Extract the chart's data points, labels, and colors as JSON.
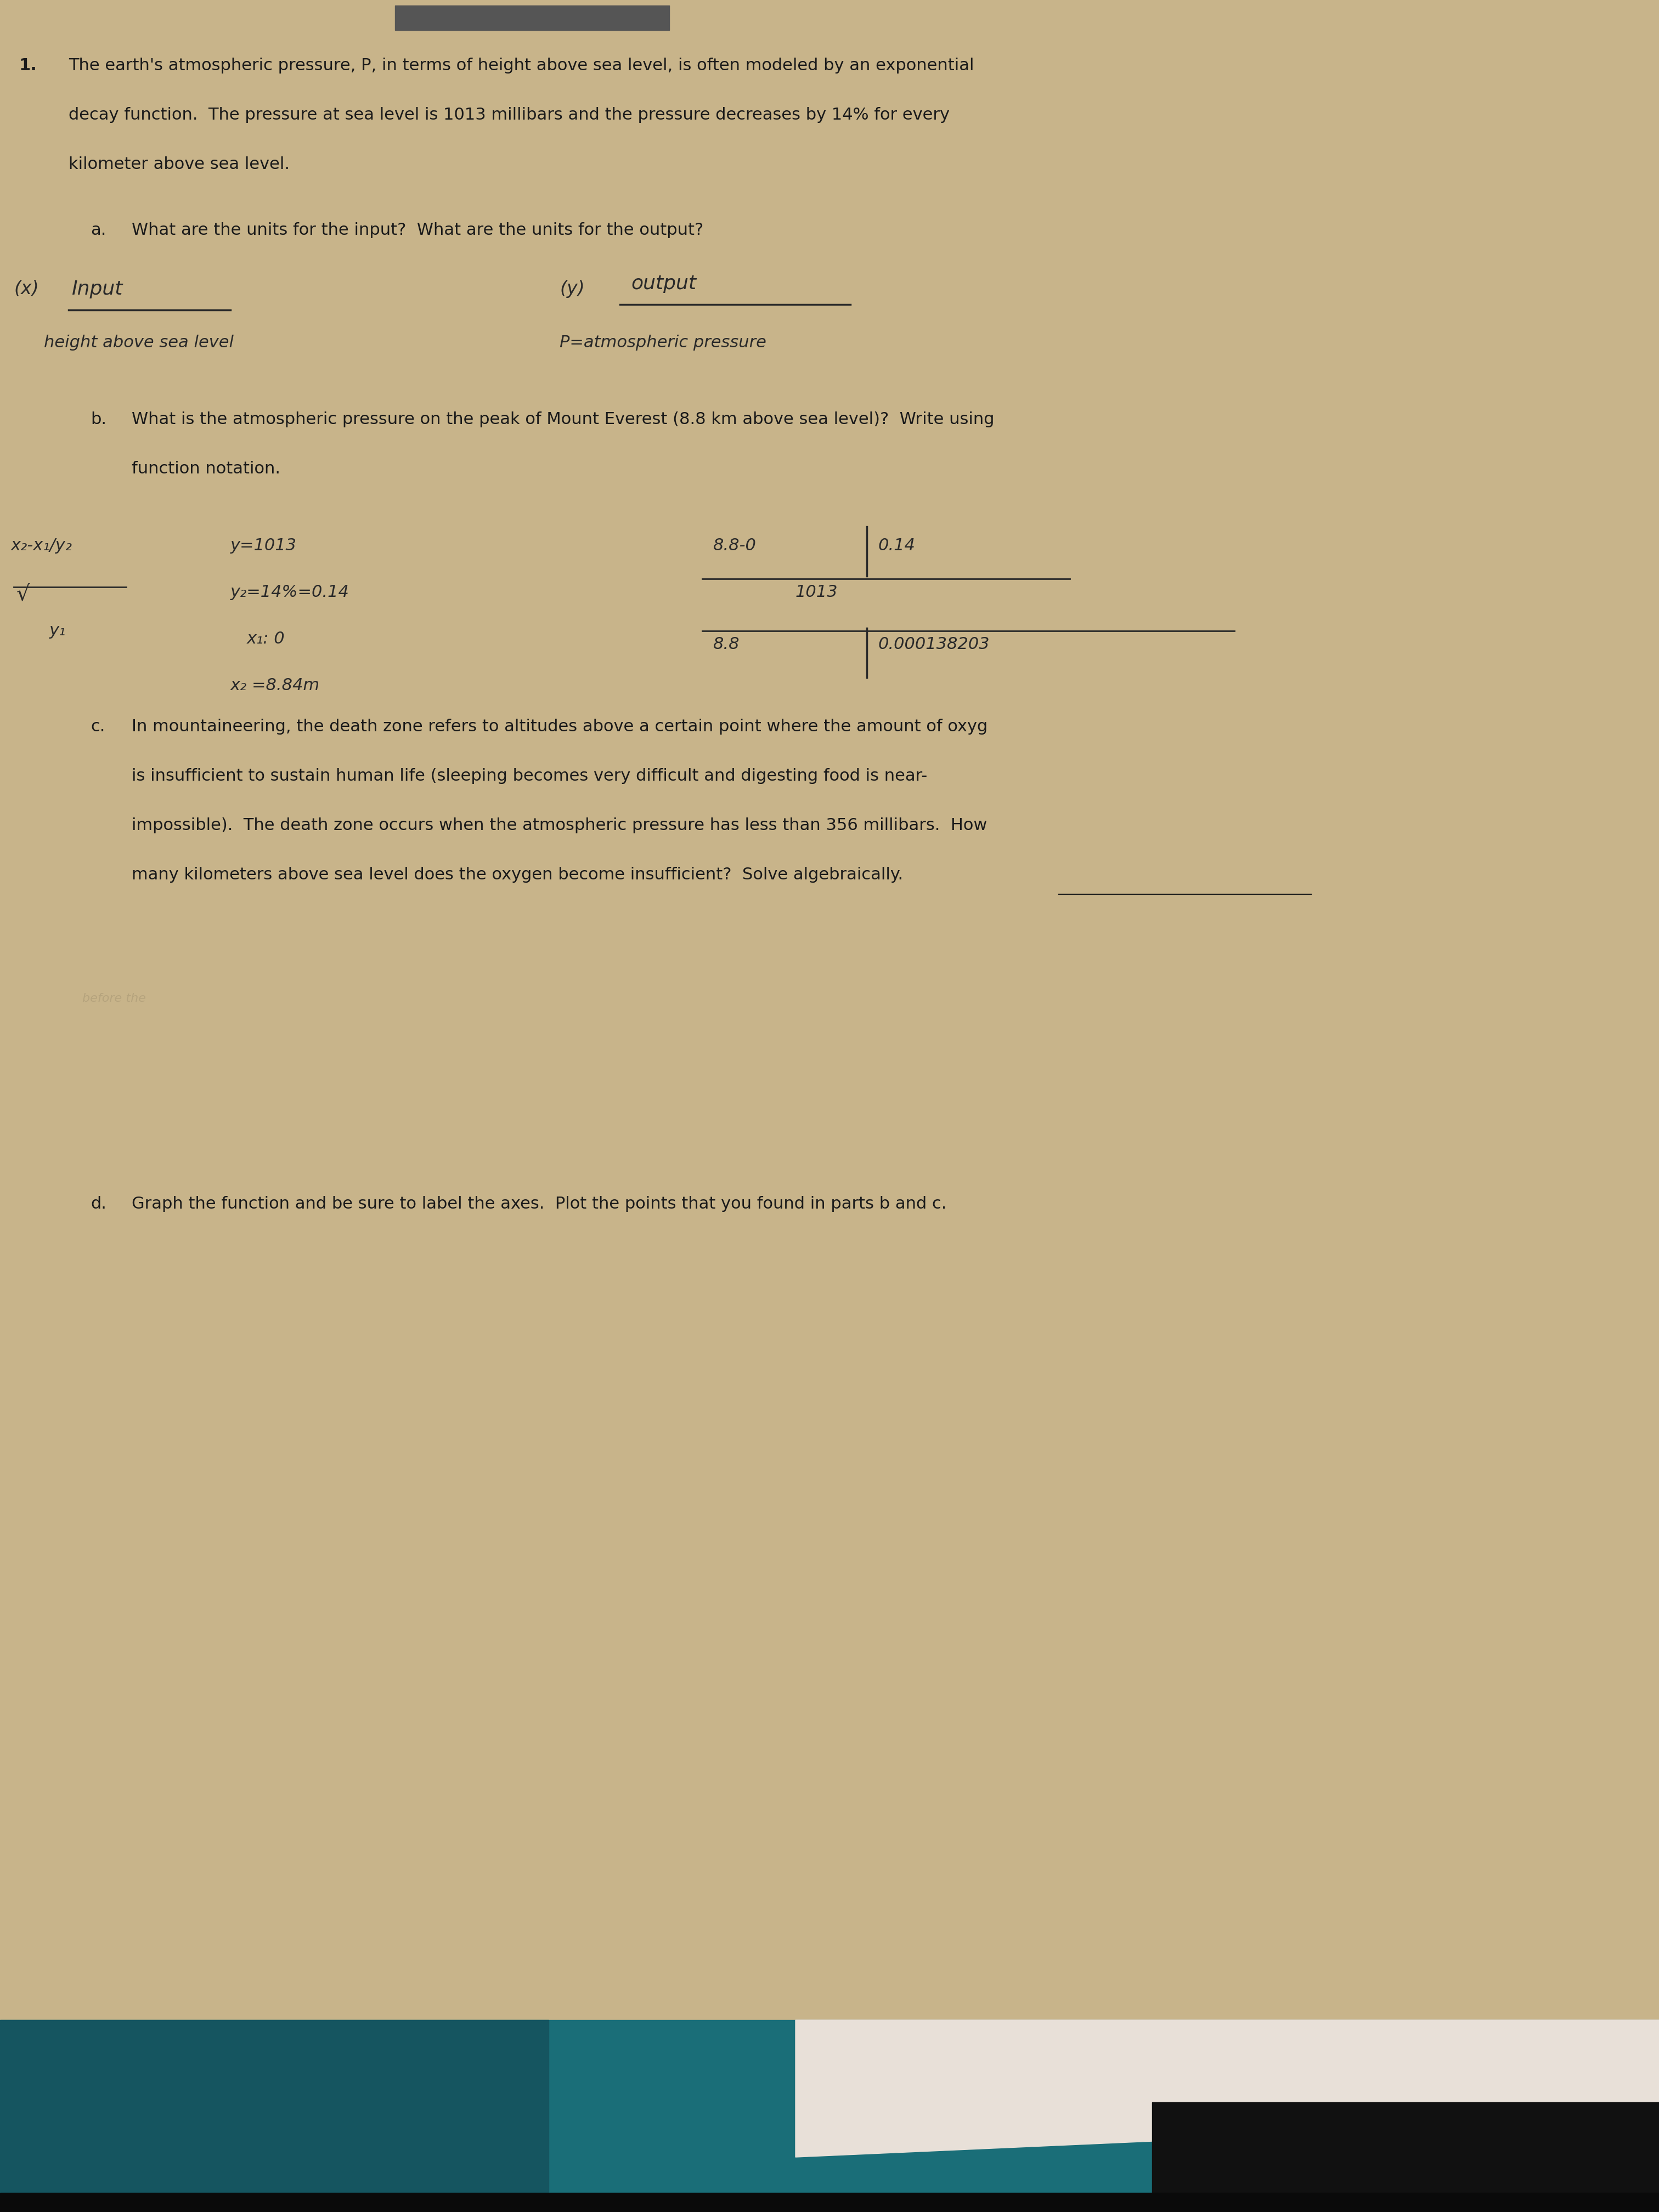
{
  "bg_color": "#c8b48a",
  "text_color": "#1a1a1a",
  "hw_color": "#2a2a2a",
  "title_number": "1.",
  "p1": "The earth's atmospheric pressure, P, in terms of height above sea level, is often modeled by an exponential",
  "p2": "decay function.  The pressure at sea level is 1013 millibars and the pressure decreases by 14% for every",
  "p3": "kilometer above sea level.",
  "a_label": "a.",
  "a_q": "What are the units for the input?  What are the units for the output?",
  "b_label": "b.",
  "b_q1": "What is the atmospheric pressure on the peak of Mount Everest (8.8 km above sea level)?  Write using",
  "b_q2": "function notation.",
  "c_label": "c.",
  "c_1": "In mountaineering, the death zone refers to altitudes above a certain point where the amount of oxyg",
  "c_2": "is insufficient to sustain human life (sleeping becomes very difficult and digesting food is near-",
  "c_3": "impossible).  The death zone occurs when the atmospheric pressure has less than 356 millibars.  How",
  "c_4": "many kilometers above sea level does the oxygen become insufficient?  Solve algebraically.",
  "d_label": "d.",
  "d_q": "Graph the function and be sure to label the axes.  Plot the points that you found in parts b and c.",
  "teal_color": "#1a6e78",
  "dark_color": "#0a0a0a",
  "paper_color": "#e8e0d8",
  "header_bar_color": "#555555",
  "fs_print": 22,
  "fs_hw": 20
}
